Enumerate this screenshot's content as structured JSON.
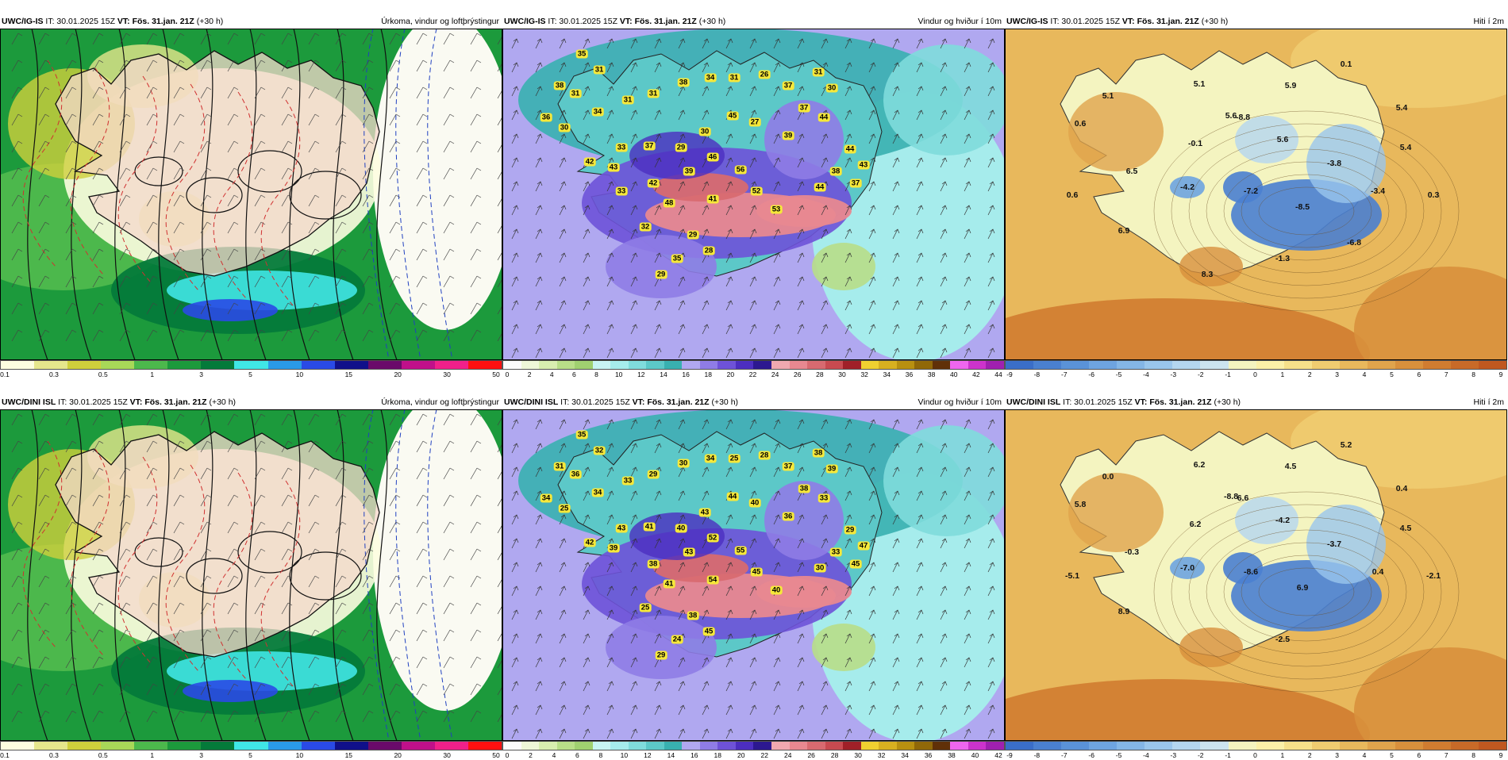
{
  "colors": {
    "precip_scale": [
      "#fdfde0",
      "#e6e68c",
      "#cfcf3c",
      "#a8d858",
      "#4cb84c",
      "#1c9a3c",
      "#047a3a",
      "#40e6e6",
      "#2a9ae8",
      "#2a4ae6",
      "#10108a",
      "#6a0a6a",
      "#c0108a",
      "#f0208a",
      "#ff1010"
    ],
    "wind_scale": [
      "#fbfbfb",
      "#eef7d8",
      "#d8eeb0",
      "#b8de88",
      "#a0d070",
      "#c8f4f4",
      "#a6ecec",
      "#80dcdc",
      "#5cc8c8",
      "#38b0b0",
      "#b0a8f0",
      "#8f7ce6",
      "#6e52d8",
      "#4c2ec0",
      "#2c1890",
      "#f0a8b0",
      "#e88890",
      "#d86a70",
      "#c84a50",
      "#a02028",
      "#f0d030",
      "#d8b020",
      "#b89010",
      "#906808",
      "#603008",
      "#ee66ee",
      "#cc33cc",
      "#a020b0"
    ],
    "temp_scale": [
      "#3a6ec8",
      "#4a80d0",
      "#5a92d8",
      "#6ea4e0",
      "#84b6e6",
      "#9ac6ec",
      "#b4d6f0",
      "#cce4f0",
      "#f4f4c0",
      "#fbf0a8",
      "#f6e08a",
      "#f0cc70",
      "#e8b85c",
      "#e0a44c",
      "#d8903c",
      "#d07c30",
      "#c86a28",
      "#c05820"
    ]
  },
  "rows": [
    {
      "model": "UWC/IG-IS",
      "panels": [
        {
          "it": "IT: 30.01.2025 15Z",
          "vt": "VT: Fös. 31.jan. 21Z",
          "lead": "(+30 h)",
          "title": "Úrkoma, vindur og loftþrýstingur"
        },
        {
          "it": "IT: 30.01.2025 15Z",
          "vt": "VT: Fös. 31.jan. 21Z",
          "lead": "(+30 h)",
          "title": "Vindur og hviður í 10m"
        },
        {
          "it": "IT: 30.01.2025 15Z",
          "vt": "VT: Fös. 31.jan. 21Z",
          "lead": "(+30 h)",
          "title": "Hiti í 2m"
        }
      ],
      "wind_labels": [
        "35",
        "31",
        "38",
        "31",
        "36",
        "30",
        "34",
        "31",
        "31",
        "38",
        "34",
        "31",
        "26",
        "37",
        "31",
        "30",
        "45",
        "30",
        "27",
        "37",
        "44",
        "39",
        "33",
        "37",
        "42",
        "43",
        "29",
        "46",
        "56",
        "39",
        "42",
        "48",
        "41",
        "52",
        "53",
        "44",
        "38",
        "37",
        "43",
        "44",
        "29",
        "28",
        "35",
        "32",
        "29",
        "33"
      ],
      "temp_labels": [
        "0.1",
        "5.1",
        "5.9",
        "5.1",
        "5.6",
        "0.6",
        "-8.8",
        "5.4",
        "-0.1",
        "5.6",
        "5.4",
        "6.5",
        "-3.8",
        "0.6",
        "-4.2",
        "-7.2",
        "-3.4",
        "0.3",
        "-8.5",
        "6.9",
        "-1.3",
        "-6.8",
        "8.3"
      ],
      "precip_ticks": [
        "0.1",
        "0.3",
        "0.5",
        "1",
        "3",
        "5",
        "10",
        "15",
        "20",
        "30",
        "50"
      ],
      "wind_ticks": [
        "0",
        "2",
        "4",
        "6",
        "8",
        "10",
        "12",
        "14",
        "16",
        "18",
        "20",
        "22",
        "24",
        "26",
        "28",
        "30",
        "32",
        "34",
        "36",
        "38",
        "40",
        "42",
        "44"
      ],
      "temp_ticks": [
        "-9",
        "-8",
        "-7",
        "-6",
        "-5",
        "-4",
        "-3",
        "-2",
        "-1",
        "0",
        "1",
        "2",
        "3",
        "4",
        "5",
        "6",
        "7",
        "8",
        "9"
      ]
    },
    {
      "model": "UWC/DINI ISL",
      "panels": [
        {
          "it": "IT: 30.01.2025 15Z",
          "vt": "VT: Fös. 31.jan. 21Z",
          "lead": "(+30 h)",
          "title": "Úrkoma, vindur og loftþrýstingur"
        },
        {
          "it": "IT: 30.01.2025 15Z",
          "vt": "VT: Fös. 31.jan. 21Z",
          "lead": "(+30 h)",
          "title": "Vindur og hviður í 10m"
        },
        {
          "it": "IT: 30.01.2025 15Z",
          "vt": "VT: Fös. 31.jan. 21Z",
          "lead": "(+30 h)",
          "title": "Hiti í 2m"
        }
      ],
      "wind_labels": [
        "35",
        "32",
        "31",
        "36",
        "34",
        "25",
        "34",
        "33",
        "29",
        "30",
        "34",
        "25",
        "28",
        "37",
        "38",
        "39",
        "44",
        "43",
        "40",
        "38",
        "33",
        "36",
        "43",
        "41",
        "42",
        "39",
        "40",
        "52",
        "55",
        "43",
        "38",
        "41",
        "54",
        "45",
        "40",
        "30",
        "33",
        "45",
        "47",
        "29",
        "38",
        "45",
        "24",
        "25",
        "29"
      ],
      "temp_labels": [
        "5.2",
        "6.2",
        "4.5",
        "0.0",
        "-8.8",
        "5.8",
        "6.6",
        "0.4",
        "6.2",
        "-4.2",
        "4.5",
        "-0.3",
        "-3.7",
        "-5.1",
        "-7.0",
        "-8.6",
        "0.4",
        "-2.1",
        "6.9",
        "8.9",
        "-2.5"
      ],
      "precip_ticks": [
        "0.1",
        "0.3",
        "0.5",
        "1",
        "3",
        "5",
        "10",
        "15",
        "20",
        "30",
        "50"
      ],
      "wind_ticks": [
        "0",
        "2",
        "4",
        "6",
        "8",
        "10",
        "12",
        "14",
        "16",
        "18",
        "20",
        "22",
        "24",
        "26",
        "28",
        "30",
        "32",
        "34",
        "36",
        "38",
        "40",
        "42"
      ],
      "temp_ticks": [
        "-9",
        "-8",
        "-7",
        "-6",
        "-5",
        "-4",
        "-3",
        "-2",
        "-1",
        "0",
        "1",
        "2",
        "3",
        "4",
        "5",
        "6",
        "7",
        "8",
        "9"
      ]
    }
  ]
}
